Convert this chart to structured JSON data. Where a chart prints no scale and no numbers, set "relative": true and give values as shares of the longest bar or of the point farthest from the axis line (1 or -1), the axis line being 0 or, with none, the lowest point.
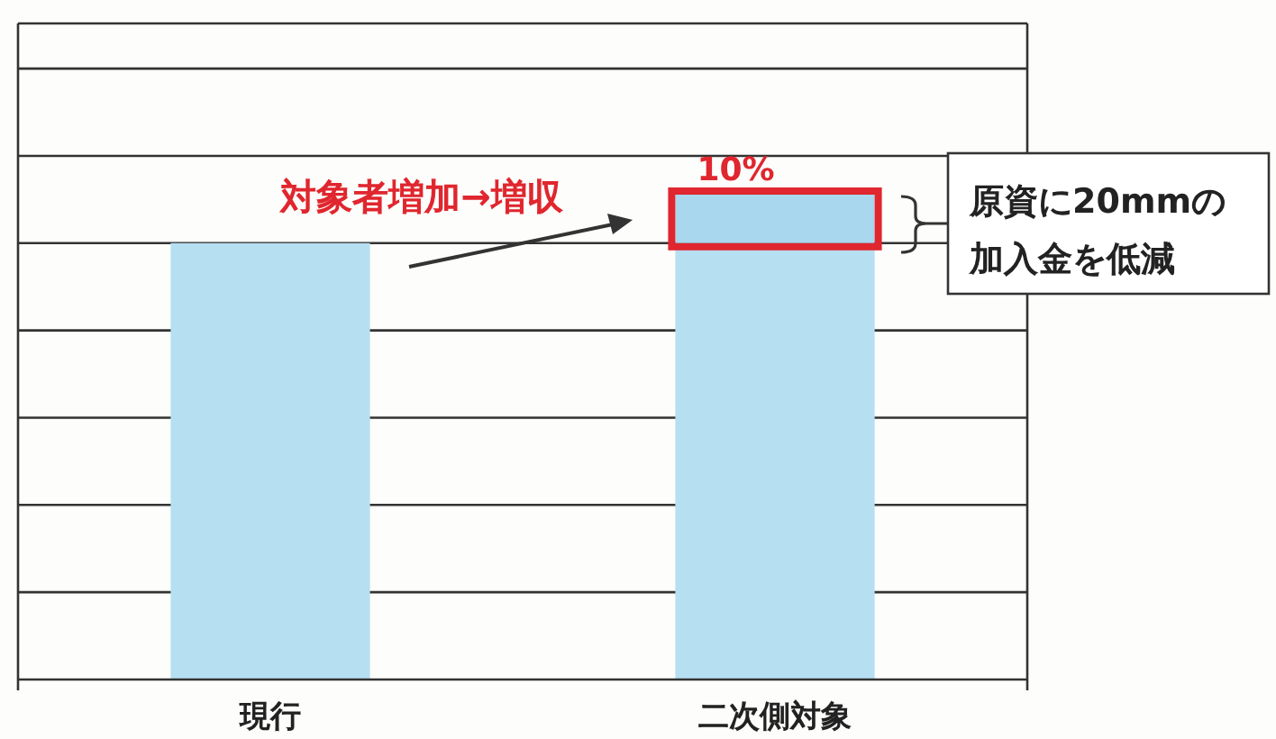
{
  "chart_data": {
    "type": "bar",
    "relative": true,
    "stacked": true,
    "grid": "y",
    "categories": [
      "現行",
      "二次側対象"
    ],
    "series": [
      {
        "color": "#b6dff2",
        "values": [
          0.9,
          0.9
        ]
      },
      {
        "color": "#a9d7ee",
        "values": [
          null,
          0.1
        ]
      }
    ],
    "annotations": [
      "対象者増加→増収",
      {
        "text": "10%",
        "x": "二次側対象",
        "y": 1.0
      },
      "原資に20mmの加入金を低減"
    ]
  }
}
